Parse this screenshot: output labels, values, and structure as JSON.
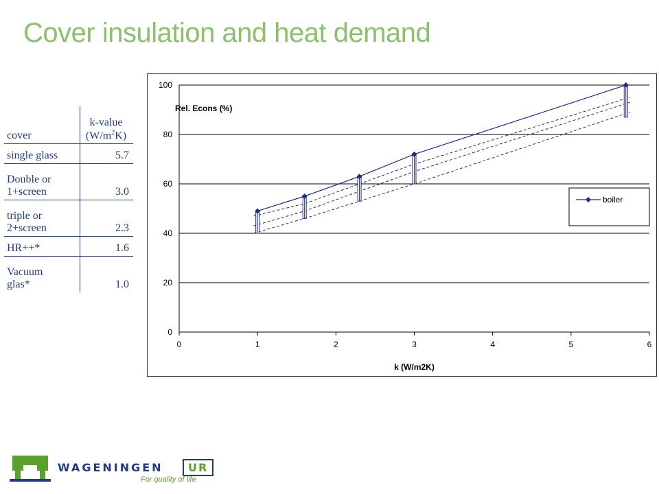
{
  "slide": {
    "title": "Cover insulation and heat demand"
  },
  "table": {
    "header": {
      "cover": "cover",
      "kvalue_line1": "k-value",
      "kvalue_line2_pre": "(W/m",
      "kvalue_sup": "2",
      "kvalue_line2_post": "K)"
    },
    "rows": [
      {
        "cover_line1": "single glass",
        "cover_line2": "",
        "k": "5.7"
      },
      {
        "cover_line1": "Double or",
        "cover_line2": "1+screen",
        "k": "3.0"
      },
      {
        "cover_line1": "triple or",
        "cover_line2": "2+screen",
        "k": "2.3"
      },
      {
        "cover_line1": "HR++*",
        "cover_line2": "",
        "k": "1.6"
      },
      {
        "cover_line1": "Vacuum",
        "cover_line2": "glas*",
        "k": "1.0"
      }
    ]
  },
  "chart_data": {
    "type": "line",
    "ylabel": "Rel. Econs (%)",
    "xlabel": "k (W/m2K)",
    "xlim": [
      0,
      6
    ],
    "ylim": [
      0,
      100
    ],
    "x_ticks": [
      "0",
      "1",
      "2",
      "3",
      "4",
      "5",
      "6"
    ],
    "y_ticks": [
      "0",
      "20",
      "40",
      "60",
      "80",
      "100"
    ],
    "grid": "horizontal",
    "legend_position": "right",
    "series": [
      {
        "name": "boiler",
        "style": "solid-marker",
        "x": [
          1.0,
          1.6,
          2.3,
          3.0,
          5.7
        ],
        "y": [
          49,
          55,
          63,
          72,
          100
        ]
      }
    ],
    "unlabeled_lines": [
      {
        "style": "dashed",
        "x": [
          0.95,
          1.6,
          2.3,
          3.0,
          5.75
        ],
        "y": [
          47,
          52,
          60,
          68,
          95
        ]
      },
      {
        "style": "dashed",
        "x": [
          0.95,
          1.6,
          2.3,
          3.0,
          5.75
        ],
        "y": [
          43,
          49,
          57,
          65,
          93
        ]
      },
      {
        "style": "dashed",
        "x": [
          0.95,
          1.6,
          2.3,
          3.0,
          5.75
        ],
        "y": [
          40,
          46,
          53,
          60,
          89
        ]
      }
    ],
    "range_bars": [
      {
        "x": 1.0,
        "y_low": 40,
        "y_high": 49
      },
      {
        "x": 1.6,
        "y_low": 46,
        "y_high": 55
      },
      {
        "x": 2.3,
        "y_low": 53,
        "y_high": 63
      },
      {
        "x": 3.0,
        "y_low": 60,
        "y_high": 72
      },
      {
        "x": 5.7,
        "y_low": 87,
        "y_high": 100
      }
    ],
    "colors": {
      "series": "#1f2a8a",
      "grid": "#000000",
      "axis_text": "#000000"
    }
  },
  "logo": {
    "brand": "WAGENINGEN",
    "brand_box": "UR",
    "tagline": "For quality of life",
    "colors": {
      "brand": "#1f3a8a",
      "green": "#5aa02c"
    }
  }
}
